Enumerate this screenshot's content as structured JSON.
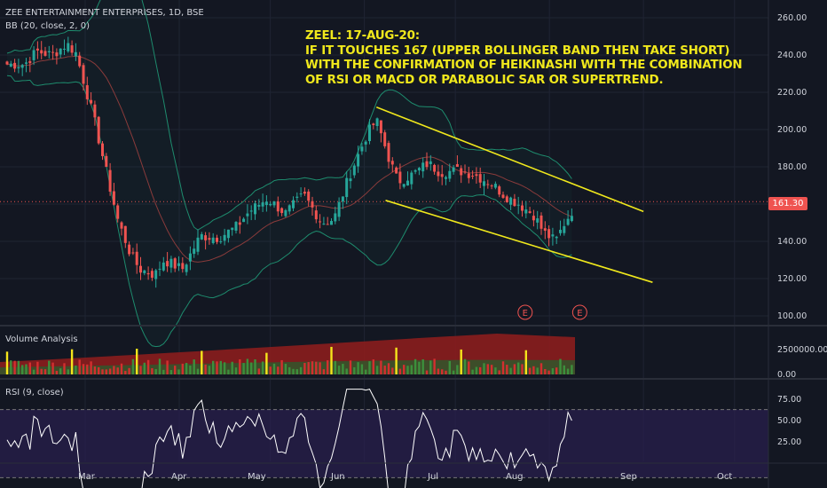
{
  "header": {
    "symbol_line": "ZEE ENTERTAINMENT ENTERPRISES, 1D, BSE",
    "indicator_line": "BB (20, close, 2, 0)"
  },
  "annotation": {
    "lines": [
      "ZEEL: 17-AUG-20:",
      "IF IT TOUCHES 167 (UPPER BOLLINGER BAND THEN TAKE SHORT)",
      "WITH THE CONFIRMATION OF HEIKINASHI WITH THE COMBINATION",
      "OF RSI OR MACD OR PARABOLIC SAR OR SUPERTREND."
    ],
    "color": "#f0e81c"
  },
  "price_axis": {
    "ticks": [
      "260.00",
      "240.00",
      "220.00",
      "200.00",
      "180.00",
      "140.00",
      "120.00",
      "100.00"
    ],
    "last_price": "161.30"
  },
  "time_axis": {
    "ticks": [
      "Mar",
      "Apr",
      "May",
      "Jun",
      "Jul",
      "Aug",
      "Sep",
      "Oct"
    ]
  },
  "events": {
    "marker_label": "E"
  },
  "volume_pane": {
    "title": "Volume Analysis",
    "ticks": [
      "2500000.00",
      "0.00"
    ]
  },
  "rsi_pane": {
    "title": "RSI (9, close)",
    "ticks": [
      "75.00",
      "50.00",
      "25.00"
    ]
  },
  "colors": {
    "background": "#131722",
    "up_candle": "#26a69a",
    "down_candle": "#ef5350",
    "trendline": "#f0e81c",
    "bollinger_band": "#1e8c6e",
    "rsi_line": "#ffffff",
    "rsi_band_fill": "#2a1f4e"
  },
  "chart_data": {
    "type": "candlestick",
    "symbol": "ZEE ENTERTAINMENT ENTERPRISES",
    "interval": "1D",
    "exchange": "BSE",
    "ylim": [
      95,
      265
    ],
    "last_price": 161.3,
    "close_path": [
      {
        "date": "2020-02-10",
        "close": 235
      },
      {
        "date": "2020-02-14",
        "close": 242
      },
      {
        "date": "2020-02-19",
        "close": 240
      },
      {
        "date": "2020-02-24",
        "close": 246
      },
      {
        "date": "2020-02-27",
        "close": 241
      },
      {
        "date": "2020-03-04",
        "close": 205
      },
      {
        "date": "2020-03-09",
        "close": 170
      },
      {
        "date": "2020-03-12",
        "close": 150
      },
      {
        "date": "2020-03-16",
        "close": 133
      },
      {
        "date": "2020-03-19",
        "close": 125
      },
      {
        "date": "2020-03-24",
        "close": 122
      },
      {
        "date": "2020-03-27",
        "close": 130
      },
      {
        "date": "2020-04-02",
        "close": 125
      },
      {
        "date": "2020-04-08",
        "close": 143
      },
      {
        "date": "2020-04-14",
        "close": 142
      },
      {
        "date": "2020-04-20",
        "close": 148
      },
      {
        "date": "2020-04-24",
        "close": 156
      },
      {
        "date": "2020-04-30",
        "close": 163
      },
      {
        "date": "2020-05-06",
        "close": 155
      },
      {
        "date": "2020-05-12",
        "close": 165
      },
      {
        "date": "2020-05-18",
        "close": 150
      },
      {
        "date": "2020-05-22",
        "close": 152
      },
      {
        "date": "2020-05-27",
        "close": 175
      },
      {
        "date": "2020-06-02",
        "close": 198
      },
      {
        "date": "2020-06-05",
        "close": 205
      },
      {
        "date": "2020-06-09",
        "close": 185
      },
      {
        "date": "2020-06-12",
        "close": 172
      },
      {
        "date": "2020-06-17",
        "close": 176
      },
      {
        "date": "2020-06-22",
        "close": 182
      },
      {
        "date": "2020-06-26",
        "close": 177
      },
      {
        "date": "2020-07-02",
        "close": 178
      },
      {
        "date": "2020-07-07",
        "close": 176
      },
      {
        "date": "2020-07-13",
        "close": 171
      },
      {
        "date": "2020-07-17",
        "close": 165
      },
      {
        "date": "2020-07-22",
        "close": 160
      },
      {
        "date": "2020-07-27",
        "close": 154
      },
      {
        "date": "2020-07-30",
        "close": 145
      },
      {
        "date": "2020-08-03",
        "close": 140
      },
      {
        "date": "2020-08-06",
        "close": 150
      },
      {
        "date": "2020-08-11",
        "close": 163
      },
      {
        "date": "2020-08-14",
        "close": 161.3
      }
    ],
    "trendlines": [
      {
        "name": "upper channel",
        "from": {
          "date": "2020-06-05",
          "price": 212
        },
        "to": {
          "date": "2020-09-01",
          "price": 156
        }
      },
      {
        "name": "lower channel",
        "from": {
          "date": "2020-06-08",
          "price": 162
        },
        "to": {
          "date": "2020-09-04",
          "price": 118
        }
      }
    ],
    "event_markers": [
      "2020-07-24",
      "2020-08-11"
    ],
    "rsi_levels": [
      70,
      30
    ]
  }
}
